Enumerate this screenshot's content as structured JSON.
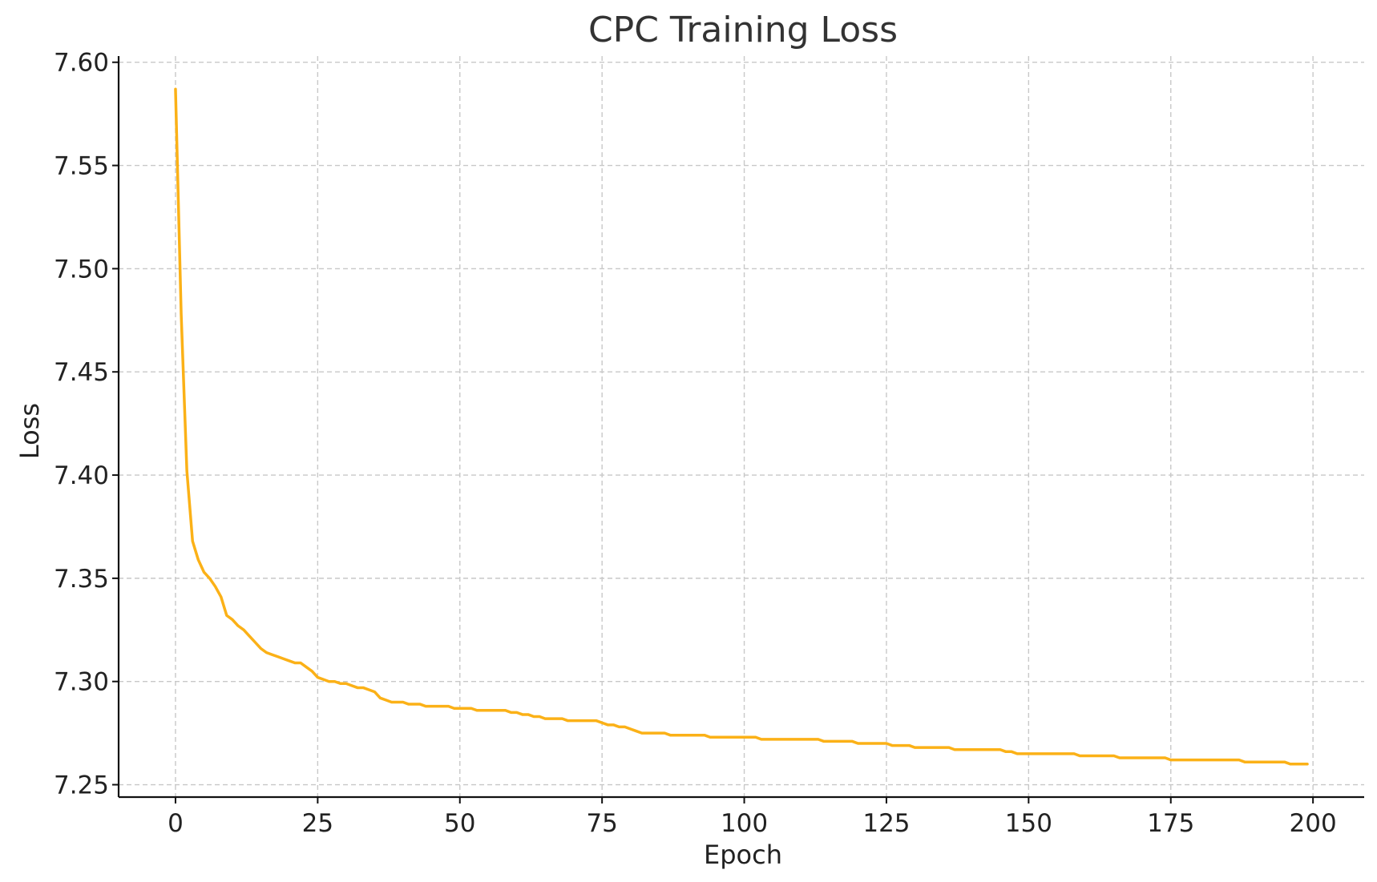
{
  "chart_data": {
    "type": "line",
    "title": "CPC Training Loss",
    "xlabel": "Epoch",
    "ylabel": "Loss",
    "xlim": [
      -10,
      209
    ],
    "ylim": [
      7.244,
      7.603
    ],
    "x_ticks": [
      0,
      25,
      50,
      75,
      100,
      125,
      150,
      175,
      200
    ],
    "x_tick_labels": [
      "0",
      "25",
      "50",
      "75",
      "100",
      "125",
      "150",
      "175",
      "200"
    ],
    "y_ticks": [
      7.25,
      7.3,
      7.35,
      7.4,
      7.45,
      7.5,
      7.55,
      7.6
    ],
    "y_tick_labels": [
      "7.25",
      "7.30",
      "7.35",
      "7.40",
      "7.45",
      "7.50",
      "7.55",
      "7.60"
    ],
    "grid": true,
    "colors": {
      "line": "#FBB117"
    },
    "series": [
      {
        "x": [
          0,
          1,
          2,
          3,
          4,
          5,
          6,
          7,
          8,
          9,
          10,
          11,
          12,
          13,
          14,
          15,
          16,
          17,
          18,
          19,
          20,
          21,
          22,
          23,
          24,
          25,
          26,
          27,
          28,
          29,
          30,
          31,
          32,
          33,
          34,
          35,
          36,
          37,
          38,
          39,
          40,
          41,
          42,
          43,
          44,
          45,
          46,
          47,
          48,
          49,
          50,
          51,
          52,
          53,
          54,
          55,
          56,
          57,
          58,
          59,
          60,
          61,
          62,
          63,
          64,
          65,
          66,
          67,
          68,
          69,
          70,
          71,
          72,
          73,
          74,
          75,
          76,
          77,
          78,
          79,
          80,
          81,
          82,
          83,
          84,
          85,
          86,
          87,
          88,
          89,
          90,
          91,
          92,
          93,
          94,
          95,
          96,
          97,
          98,
          99,
          100,
          101,
          102,
          103,
          104,
          105,
          106,
          107,
          108,
          109,
          110,
          111,
          112,
          113,
          114,
          115,
          116,
          117,
          118,
          119,
          120,
          121,
          122,
          123,
          124,
          125,
          126,
          127,
          128,
          129,
          130,
          131,
          132,
          133,
          134,
          135,
          136,
          137,
          138,
          139,
          140,
          141,
          142,
          143,
          144,
          145,
          146,
          147,
          148,
          149,
          150,
          151,
          152,
          153,
          154,
          155,
          156,
          157,
          158,
          159,
          160,
          161,
          162,
          163,
          164,
          165,
          166,
          167,
          168,
          169,
          170,
          171,
          172,
          173,
          174,
          175,
          176,
          177,
          178,
          179,
          180,
          181,
          182,
          183,
          184,
          185,
          186,
          187,
          188,
          189,
          190,
          191,
          192,
          193,
          194,
          195,
          196,
          197,
          198,
          199
        ],
        "values": [
          7.587,
          7.478,
          7.402,
          7.368,
          7.359,
          7.353,
          7.35,
          7.346,
          7.341,
          7.332,
          7.33,
          7.327,
          7.325,
          7.322,
          7.319,
          7.316,
          7.314,
          7.313,
          7.312,
          7.311,
          7.31,
          7.309,
          7.309,
          7.307,
          7.305,
          7.302,
          7.301,
          7.3,
          7.3,
          7.299,
          7.299,
          7.298,
          7.297,
          7.297,
          7.296,
          7.295,
          7.292,
          7.291,
          7.29,
          7.29,
          7.29,
          7.289,
          7.289,
          7.289,
          7.288,
          7.288,
          7.288,
          7.288,
          7.288,
          7.287,
          7.287,
          7.287,
          7.287,
          7.286,
          7.286,
          7.286,
          7.286,
          7.286,
          7.286,
          7.285,
          7.285,
          7.284,
          7.284,
          7.283,
          7.283,
          7.282,
          7.282,
          7.282,
          7.282,
          7.281,
          7.281,
          7.281,
          7.281,
          7.281,
          7.281,
          7.28,
          7.279,
          7.279,
          7.278,
          7.278,
          7.277,
          7.276,
          7.275,
          7.275,
          7.275,
          7.275,
          7.275,
          7.274,
          7.274,
          7.274,
          7.274,
          7.274,
          7.274,
          7.274,
          7.273,
          7.273,
          7.273,
          7.273,
          7.273,
          7.273,
          7.273,
          7.273,
          7.273,
          7.272,
          7.272,
          7.272,
          7.272,
          7.272,
          7.272,
          7.272,
          7.272,
          7.272,
          7.272,
          7.272,
          7.271,
          7.271,
          7.271,
          7.271,
          7.271,
          7.271,
          7.27,
          7.27,
          7.27,
          7.27,
          7.27,
          7.27,
          7.269,
          7.269,
          7.269,
          7.269,
          7.268,
          7.268,
          7.268,
          7.268,
          7.268,
          7.268,
          7.268,
          7.267,
          7.267,
          7.267,
          7.267,
          7.267,
          7.267,
          7.267,
          7.267,
          7.267,
          7.266,
          7.266,
          7.265,
          7.265,
          7.265,
          7.265,
          7.265,
          7.265,
          7.265,
          7.265,
          7.265,
          7.265,
          7.265,
          7.264,
          7.264,
          7.264,
          7.264,
          7.264,
          7.264,
          7.264,
          7.263,
          7.263,
          7.263,
          7.263,
          7.263,
          7.263,
          7.263,
          7.263,
          7.263,
          7.262,
          7.262,
          7.262,
          7.262,
          7.262,
          7.262,
          7.262,
          7.262,
          7.262,
          7.262,
          7.262,
          7.262,
          7.262,
          7.261,
          7.261,
          7.261,
          7.261,
          7.261,
          7.261,
          7.261,
          7.261,
          7.26,
          7.26,
          7.26,
          7.26
        ]
      }
    ]
  }
}
